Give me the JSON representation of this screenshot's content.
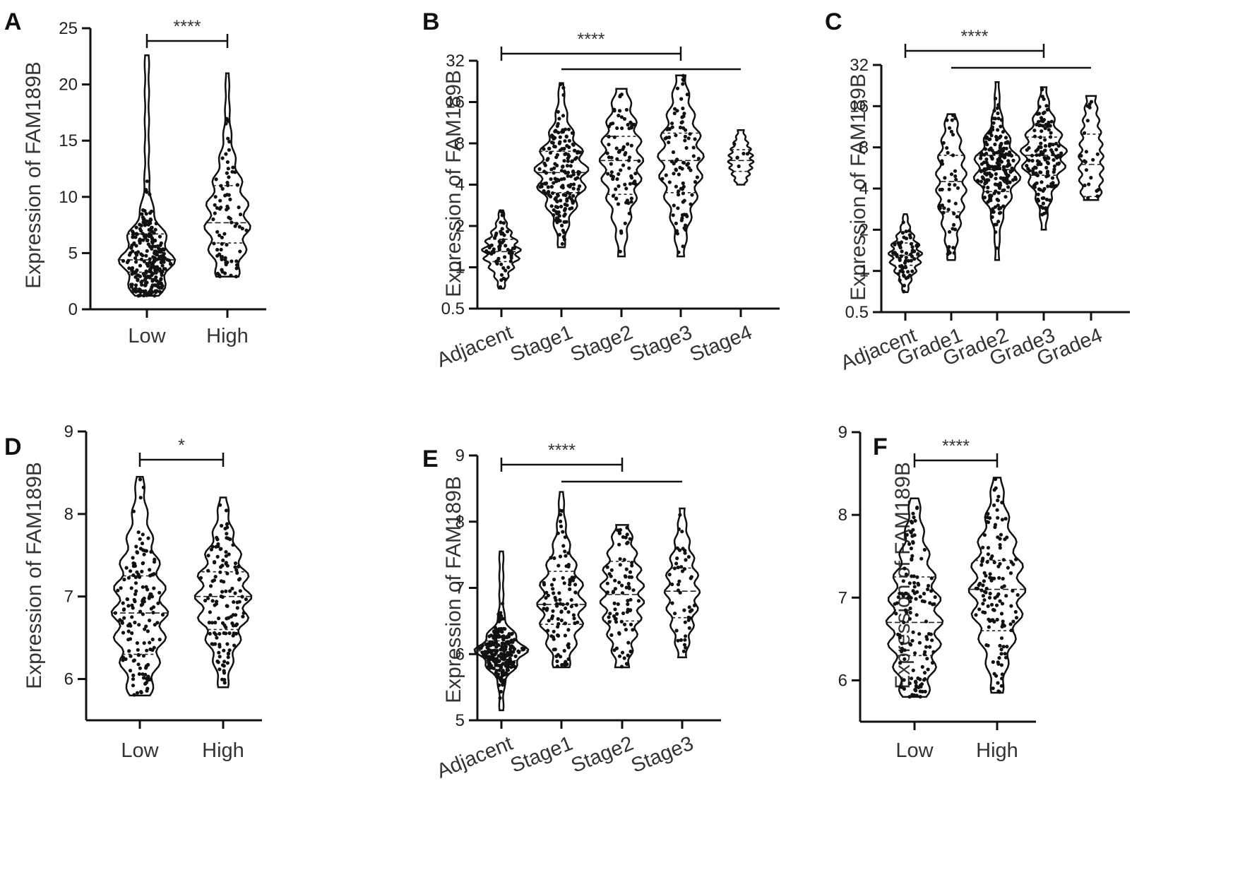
{
  "figure": {
    "panels": [
      {
        "letter": "A",
        "ylabel": "Expression of FAM189B"
      },
      {
        "letter": "B",
        "ylabel": "Expression of FAM189B"
      },
      {
        "letter": "C",
        "ylabel": "Expression of FAM189B"
      },
      {
        "letter": "D",
        "ylabel": "Expression of FAM189B"
      },
      {
        "letter": "E",
        "ylabel": "Expression of FAM189B"
      },
      {
        "letter": "F",
        "ylabel": "Expression of FAM189B"
      }
    ]
  },
  "chart_data": [
    {
      "type": "violin",
      "panel": "A",
      "title": "",
      "ylabel": "Expression of FAM189B",
      "ylim": [
        0,
        25
      ],
      "yscale": "linear",
      "yticks": [
        0,
        5,
        10,
        15,
        20,
        25
      ],
      "categories": [
        "Low",
        "High"
      ],
      "groups": [
        {
          "category": "Low",
          "min": 1.2,
          "q1": 3.3,
          "median": 4.4,
          "q3": 6.7,
          "max": 22.6,
          "n": 260
        },
        {
          "category": "High",
          "min": 2.9,
          "q1": 5.9,
          "median": 7.7,
          "q3": 11.0,
          "max": 21.0,
          "n": 80
        }
      ],
      "annotations": [
        {
          "from": "Low",
          "to": "High",
          "text": "****"
        }
      ]
    },
    {
      "type": "violin",
      "panel": "B",
      "title": "",
      "ylabel": "Expression of FAM189B",
      "ylim": [
        0.5,
        32
      ],
      "yscale": "log2",
      "yticks": [
        0.5,
        1,
        2,
        4,
        8,
        16,
        32
      ],
      "ytick_labels": [
        "0.5",
        "1",
        "2",
        "4",
        "8",
        "16",
        "32"
      ],
      "categories": [
        "Adjacent",
        "Stage1",
        "Stage2",
        "Stage3",
        "Stage4"
      ],
      "groups": [
        {
          "category": "Adjacent",
          "min": 0.7,
          "q1": 1.1,
          "median": 1.3,
          "q3": 1.6,
          "max": 2.6,
          "n": 60
        },
        {
          "category": "Stage1",
          "min": 1.4,
          "q1": 3.5,
          "median": 4.9,
          "q3": 7.0,
          "max": 22.0,
          "n": 180
        },
        {
          "category": "Stage2",
          "min": 1.2,
          "q1": 3.4,
          "median": 6.0,
          "q3": 9.0,
          "max": 20.0,
          "n": 80
        },
        {
          "category": "Stage3",
          "min": 1.2,
          "q1": 3.5,
          "median": 6.0,
          "q3": 9.5,
          "max": 25.0,
          "n": 90
        },
        {
          "category": "Stage4",
          "min": 4.0,
          "q1": 5.0,
          "median": 6.0,
          "q3": 7.2,
          "max": 10.0,
          "n": 6
        }
      ],
      "annotations": [
        {
          "from": "Adjacent",
          "to": "Stage3",
          "text": "****"
        },
        {
          "from": "Stage1",
          "to": "Stage4",
          "text": ""
        }
      ]
    },
    {
      "type": "violin",
      "panel": "C",
      "title": "",
      "ylabel": "Expression of FAM189B",
      "ylim": [
        0.5,
        32
      ],
      "yscale": "log2",
      "yticks": [
        0.5,
        1,
        2,
        4,
        8,
        16,
        32
      ],
      "ytick_labels": [
        "0.5",
        "1",
        "2",
        "4",
        "8",
        "16",
        "32"
      ],
      "categories": [
        "Adjacent",
        "Grade1",
        "Grade2",
        "Grade3",
        "Grade4"
      ],
      "groups": [
        {
          "category": "Adjacent",
          "min": 0.7,
          "q1": 1.1,
          "median": 1.3,
          "q3": 1.6,
          "max": 2.6,
          "n": 60
        },
        {
          "category": "Grade1",
          "min": 1.2,
          "q1": 2.7,
          "median": 4.5,
          "q3": 7.0,
          "max": 14.0,
          "n": 45
        },
        {
          "category": "Grade2",
          "min": 1.2,
          "q1": 3.8,
          "median": 5.5,
          "q3": 7.0,
          "max": 24.0,
          "n": 200
        },
        {
          "category": "Grade3",
          "min": 2.0,
          "q1": 5.0,
          "median": 7.0,
          "q3": 9.5,
          "max": 22.0,
          "n": 140
        },
        {
          "category": "Grade4",
          "min": 3.3,
          "q1": 3.5,
          "median": 6.0,
          "q3": 10.0,
          "max": 19.0,
          "n": 20
        }
      ],
      "annotations": [
        {
          "from": "Adjacent",
          "to": "Grade3",
          "text": "****"
        },
        {
          "from": "Grade1",
          "to": "Grade4",
          "text": ""
        }
      ]
    },
    {
      "type": "violin",
      "panel": "D",
      "title": "",
      "ylabel": "Expression of FAM189B",
      "ylim": [
        5.5,
        9
      ],
      "yscale": "linear",
      "yticks": [
        6,
        7,
        8,
        9
      ],
      "categories": [
        "Low",
        "High"
      ],
      "groups": [
        {
          "category": "Low",
          "min": 5.8,
          "q1": 6.3,
          "median": 6.8,
          "q3": 7.25,
          "max": 8.45,
          "n": 150
        },
        {
          "category": "High",
          "min": 5.9,
          "q1": 6.6,
          "median": 7.0,
          "q3": 7.3,
          "max": 8.2,
          "n": 130
        }
      ],
      "annotations": [
        {
          "from": "Low",
          "to": "High",
          "text": "*"
        }
      ]
    },
    {
      "type": "violin",
      "panel": "E",
      "title": "",
      "ylabel": "Expression of FAM189B",
      "ylim": [
        5,
        9
      ],
      "yscale": "linear",
      "yticks": [
        5,
        6,
        7,
        8,
        9
      ],
      "categories": [
        "Adjacent",
        "Stage1",
        "Stage2",
        "Stage3"
      ],
      "groups": [
        {
          "category": "Adjacent",
          "min": 5.15,
          "q1": 5.9,
          "median": 6.05,
          "q3": 6.2,
          "max": 7.55,
          "n": 220
        },
        {
          "category": "Stage1",
          "min": 5.8,
          "q1": 6.45,
          "median": 6.75,
          "q3": 7.25,
          "max": 8.45,
          "n": 100
        },
        {
          "category": "Stage2",
          "min": 5.8,
          "q1": 6.5,
          "median": 6.9,
          "q3": 7.4,
          "max": 7.95,
          "n": 80
        },
        {
          "category": "Stage3",
          "min": 5.95,
          "q1": 6.55,
          "median": 6.95,
          "q3": 7.3,
          "max": 8.2,
          "n": 45
        }
      ],
      "annotations": [
        {
          "from": "Adjacent",
          "to": "Stage2",
          "text": "****"
        },
        {
          "from": "Stage1",
          "to": "Stage3",
          "text": ""
        }
      ]
    },
    {
      "type": "violin",
      "panel": "F",
      "title": "",
      "ylabel": "Expression of FAM189B",
      "ylim": [
        5.5,
        9
      ],
      "yscale": "linear",
      "yticks": [
        6,
        7,
        8,
        9
      ],
      "categories": [
        "Low",
        "High"
      ],
      "groups": [
        {
          "category": "Low",
          "min": 5.8,
          "q1": 6.3,
          "median": 6.7,
          "q3": 7.25,
          "max": 8.2,
          "n": 130
        },
        {
          "category": "High",
          "min": 5.85,
          "q1": 6.6,
          "median": 7.1,
          "q3": 7.45,
          "max": 8.45,
          "n": 130
        }
      ],
      "annotations": [
        {
          "from": "Low",
          "to": "High",
          "text": "****"
        }
      ]
    }
  ]
}
